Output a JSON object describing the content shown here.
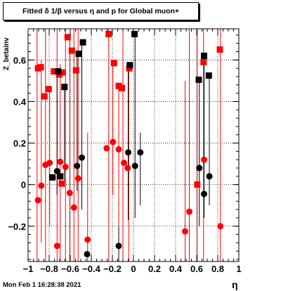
{
  "title": "Fitted δ 1/β versus η and p for Global muon+",
  "datestamp": "Mon Feb  1 16:28:38 2021",
  "chart_data": {
    "type": "scatter",
    "title": "Fitted δ 1/β versus η and p for Global muon+",
    "xlabel": "η",
    "ylabel": "Z_betainv",
    "xlim": [
      -1,
      1
    ],
    "ylim": [
      -0.37,
      0.75
    ],
    "grid": true,
    "xticks": [
      -1,
      -0.8,
      -0.6,
      -0.4,
      -0.2,
      0,
      0.2,
      0.4,
      0.6,
      0.8,
      1
    ],
    "xtick_labels": [
      "−1",
      "−0.8",
      "−0.6",
      "−0.4",
      "−0.2",
      "0",
      "0.2",
      "0.4",
      "0.6",
      "0.8",
      "1"
    ],
    "yticks": [
      -0.2,
      0,
      0.2,
      0.4,
      0.6
    ],
    "ytick_labels": [
      "−0.2",
      "0",
      "0.2",
      "0.4",
      "0.6"
    ],
    "series": [
      {
        "color": "#ff0000",
        "points": [
          {
            "x": -0.906,
            "y": 0.56,
            "marker": "square"
          },
          {
            "x": -0.88,
            "y": 0.565,
            "marker": "square"
          },
          {
            "x": -0.845,
            "y": 0.425,
            "marker": "square"
          },
          {
            "x": -0.805,
            "y": 0.46,
            "marker": "square"
          },
          {
            "x": -0.755,
            "y": 0.545,
            "marker": "square"
          },
          {
            "x": -0.705,
            "y": 0.53,
            "marker": "square"
          },
          {
            "x": -0.675,
            "y": 0.54,
            "marker": "square"
          },
          {
            "x": -0.625,
            "y": 0.71,
            "marker": "square"
          },
          {
            "x": -0.585,
            "y": 0.645,
            "marker": "square"
          },
          {
            "x": -0.545,
            "y": 0.55,
            "marker": "square"
          },
          {
            "x": -0.235,
            "y": 0.725,
            "marker": "square"
          },
          {
            "x": -0.185,
            "y": 0.585,
            "marker": "square"
          },
          {
            "x": -0.14,
            "y": 0.475,
            "marker": "square"
          },
          {
            "x": -0.11,
            "y": 0.465,
            "marker": "square"
          },
          {
            "x": -0.04,
            "y": 0.56,
            "marker": "square"
          },
          {
            "x": 0.605,
            "y": 0.0,
            "marker": "square"
          },
          {
            "x": 0.665,
            "y": 0.59,
            "marker": "square"
          },
          {
            "x": 0.82,
            "y": 0.65,
            "marker": "square"
          },
          {
            "x": -0.68,
            "y": 0.005,
            "marker": "square"
          },
          {
            "x": -0.906,
            "y": -0.075,
            "marker": "circle"
          },
          {
            "x": -0.875,
            "y": -0.005,
            "marker": "circle"
          },
          {
            "x": -0.835,
            "y": 0.095,
            "marker": "circle"
          },
          {
            "x": -0.795,
            "y": 0.105,
            "marker": "circle"
          },
          {
            "x": -0.765,
            "y": 0.035,
            "marker": "circle"
          },
          {
            "x": -0.725,
            "y": -0.295,
            "marker": "circle"
          },
          {
            "x": -0.695,
            "y": 0.11,
            "marker": "circle"
          },
          {
            "x": -0.645,
            "y": 0.085,
            "marker": "circle"
          },
          {
            "x": -0.605,
            "y": -0.04,
            "marker": "circle"
          },
          {
            "x": -0.565,
            "y": -0.11,
            "marker": "circle"
          },
          {
            "x": -0.525,
            "y": 0.03,
            "marker": "circle"
          },
          {
            "x": -0.435,
            "y": -0.265,
            "marker": "circle"
          },
          {
            "x": -0.255,
            "y": 0.175,
            "marker": "circle"
          },
          {
            "x": -0.195,
            "y": 0.205,
            "marker": "circle"
          },
          {
            "x": -0.14,
            "y": 0.17,
            "marker": "circle"
          },
          {
            "x": -0.09,
            "y": 0.105,
            "marker": "circle"
          },
          {
            "x": -0.055,
            "y": 0.08,
            "marker": "circle"
          },
          {
            "x": 0.49,
            "y": -0.225,
            "marker": "circle"
          },
          {
            "x": 0.53,
            "y": -0.13,
            "marker": "circle"
          },
          {
            "x": 0.67,
            "y": 0.12,
            "marker": "circle"
          },
          {
            "x": 0.825,
            "y": -0.2,
            "marker": "circle"
          }
        ]
      },
      {
        "color": "#000000",
        "points": [
          {
            "x": -0.715,
            "y": 0.545,
            "marker": "square"
          },
          {
            "x": -0.655,
            "y": 0.47,
            "marker": "square"
          },
          {
            "x": -0.52,
            "y": 0.63,
            "marker": "square"
          },
          {
            "x": -0.48,
            "y": 0.685,
            "marker": "square"
          },
          {
            "x": -0.035,
            "y": 0.575,
            "marker": "square"
          },
          {
            "x": 0.01,
            "y": 0.725,
            "marker": "square"
          },
          {
            "x": 0.62,
            "y": 0.505,
            "marker": "square"
          },
          {
            "x": 0.67,
            "y": 0.62,
            "marker": "square"
          },
          {
            "x": 0.715,
            "y": 0.525,
            "marker": "square"
          },
          {
            "x": -0.77,
            "y": 0.035,
            "marker": "square"
          },
          {
            "x": -0.695,
            "y": 0.04,
            "marker": "square"
          },
          {
            "x": -0.725,
            "y": 0.065,
            "marker": "circle"
          },
          {
            "x": -0.535,
            "y": 0.09,
            "marker": "circle"
          },
          {
            "x": -0.49,
            "y": 0.13,
            "marker": "circle"
          },
          {
            "x": -0.44,
            "y": -0.335,
            "marker": "circle"
          },
          {
            "x": -0.14,
            "y": -0.295,
            "marker": "circle"
          },
          {
            "x": -0.05,
            "y": 0.155,
            "marker": "circle"
          },
          {
            "x": 0.015,
            "y": 0.09,
            "marker": "circle"
          },
          {
            "x": 0.065,
            "y": 0.155,
            "marker": "circle"
          },
          {
            "x": 0.625,
            "y": 0.08,
            "marker": "circle"
          },
          {
            "x": 0.67,
            "y": -0.045,
            "marker": "circle"
          },
          {
            "x": 0.72,
            "y": 0.04,
            "marker": "circle"
          }
        ]
      }
    ],
    "error_bars": [
      {
        "color": "#ff0000",
        "x": -0.915,
        "ylo": -0.37,
        "yhi": 0.75
      },
      {
        "color": "#ff0000",
        "x": -0.875,
        "ylo": -0.28,
        "yhi": 0.6
      },
      {
        "color": "#ff0000",
        "x": -0.835,
        "ylo": -0.37,
        "yhi": 0.75
      },
      {
        "color": "#ff0000",
        "x": -0.795,
        "ylo": -0.2,
        "yhi": 0.47
      },
      {
        "color": "#ff0000",
        "x": -0.725,
        "ylo": -0.37,
        "yhi": 0.75
      },
      {
        "color": "#ff0000",
        "x": -0.695,
        "ylo": -0.37,
        "yhi": 0.58
      },
      {
        "color": "#ff0000",
        "x": -0.645,
        "ylo": -0.37,
        "yhi": 0.75
      },
      {
        "color": "#ff0000",
        "x": -0.605,
        "ylo": -0.37,
        "yhi": 0.72
      },
      {
        "color": "#ff0000",
        "x": -0.565,
        "ylo": -0.37,
        "yhi": 0.75
      },
      {
        "color": "#ff0000",
        "x": -0.525,
        "ylo": -0.37,
        "yhi": 0.75
      },
      {
        "color": "#ff0000",
        "x": -0.435,
        "ylo": -0.37,
        "yhi": 0.25
      },
      {
        "color": "#ff0000",
        "x": -0.235,
        "ylo": -0.37,
        "yhi": 0.75
      },
      {
        "color": "#ff0000",
        "x": -0.195,
        "ylo": -0.05,
        "yhi": 0.59
      },
      {
        "color": "#ff0000",
        "x": -0.14,
        "ylo": -0.37,
        "yhi": 0.48
      },
      {
        "color": "#ff0000",
        "x": -0.1,
        "ylo": -0.37,
        "yhi": 0.75
      },
      {
        "color": "#ff0000",
        "x": -0.045,
        "ylo": -0.37,
        "yhi": 0.57
      },
      {
        "color": "#ff0000",
        "x": 0.49,
        "ylo": -0.37,
        "yhi": 0.5
      },
      {
        "color": "#ff0000",
        "x": 0.53,
        "ylo": -0.37,
        "yhi": 0.75
      },
      {
        "color": "#ff0000",
        "x": 0.605,
        "ylo": -0.37,
        "yhi": 0.75
      },
      {
        "color": "#ff0000",
        "x": 0.665,
        "ylo": -0.37,
        "yhi": 0.75
      },
      {
        "color": "#ff0000",
        "x": 0.825,
        "ylo": -0.37,
        "yhi": 0.75
      },
      {
        "color": "#000000",
        "x": -0.725,
        "ylo": -0.05,
        "yhi": 0.55
      },
      {
        "color": "#000000",
        "x": -0.655,
        "ylo": 0.0,
        "yhi": 0.48
      },
      {
        "color": "#000000",
        "x": -0.535,
        "ylo": -0.03,
        "yhi": 0.64
      },
      {
        "color": "#000000",
        "x": -0.49,
        "ylo": -0.12,
        "yhi": 0.69
      },
      {
        "color": "#000000",
        "x": -0.14,
        "ylo": -0.37,
        "yhi": -0.2
      },
      {
        "color": "#000000",
        "x": -0.05,
        "ylo": -0.17,
        "yhi": 0.58
      },
      {
        "color": "#000000",
        "x": 0.015,
        "ylo": -0.16,
        "yhi": 0.73
      },
      {
        "color": "#000000",
        "x": 0.065,
        "ylo": -0.1,
        "yhi": 0.25
      },
      {
        "color": "#000000",
        "x": 0.625,
        "ylo": -0.2,
        "yhi": 0.51
      },
      {
        "color": "#000000",
        "x": 0.67,
        "ylo": -0.16,
        "yhi": 0.62
      },
      {
        "color": "#000000",
        "x": 0.72,
        "ylo": -0.1,
        "yhi": 0.53
      }
    ]
  }
}
